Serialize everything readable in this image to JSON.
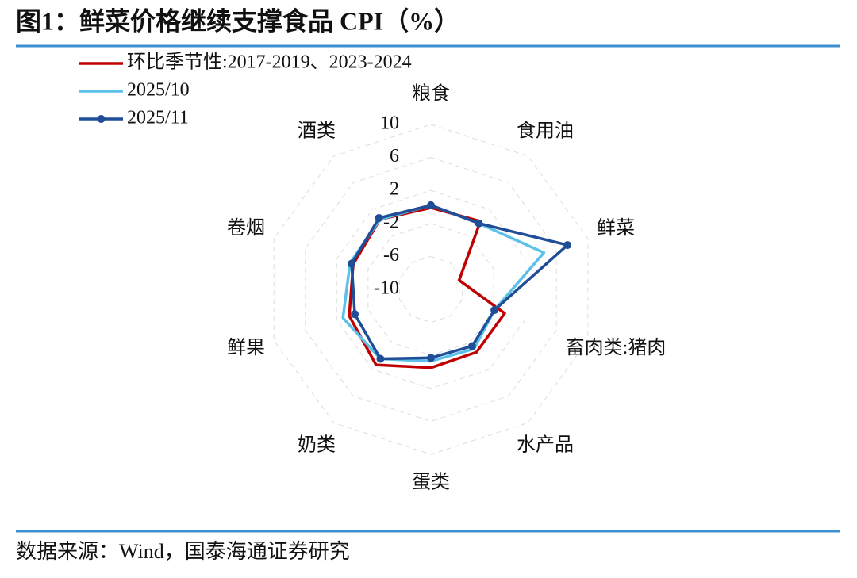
{
  "chart_data": {
    "type": "radar",
    "title": "图1：鲜菜价格继续支撑食品 CPI（%）",
    "source": "数据来源：Wind，国泰海通证券研究",
    "categories": [
      "粮食",
      "食用油",
      "鲜菜",
      "畜肉类:猪肉",
      "水产品",
      "蛋类",
      "奶类",
      "鲜果",
      "卷烟",
      "酒类"
    ],
    "ylim": [
      -10,
      10
    ],
    "yticks": [
      10,
      6,
      2,
      -2,
      -6,
      -10
    ],
    "grid": true,
    "series": [
      {
        "name": "环比季节性:2017-2019、2023-2024",
        "color": "#c00000",
        "values": [
          -0.1,
          0.2,
          -6.4,
          -0.6,
          -0.6,
          -0.5,
          1.3,
          0.4,
          -0.1,
          0.5
        ]
      },
      {
        "name": "2025/10",
        "color": "#5bc0ea",
        "values": [
          0.2,
          -0.1,
          4.4,
          -1.9,
          -1.1,
          -1.3,
          0.4,
          1.2,
          0.3,
          0.5
        ]
      },
      {
        "name": "2025/11",
        "color": "#1f4e96",
        "markers": true,
        "values": [
          0.2,
          -0.1,
          7.4,
          -1.9,
          -1.5,
          -1.7,
          0.4,
          -0.3,
          0.1,
          0.7
        ]
      }
    ]
  }
}
